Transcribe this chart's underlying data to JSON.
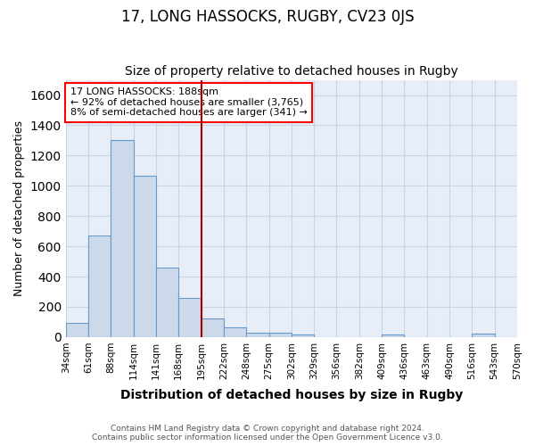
{
  "title": "17, LONG HASSOCKS, RUGBY, CV23 0JS",
  "subtitle": "Size of property relative to detached houses in Rugby",
  "xlabel": "Distribution of detached houses by size in Rugby",
  "ylabel": "Number of detached properties",
  "footer_line1": "Contains HM Land Registry data © Crown copyright and database right 2024.",
  "footer_line2": "Contains public sector information licensed under the Open Government Licence v3.0.",
  "annotation_line1": "17 LONG HASSOCKS: 188sqm",
  "annotation_line2": "← 92% of detached houses are smaller (3,765)",
  "annotation_line3": "8% of semi-detached houses are larger (341) →",
  "tick_labels": [
    "34sqm",
    "61sqm",
    "88sqm",
    "114sqm",
    "141sqm",
    "168sqm",
    "195sqm",
    "222sqm",
    "248sqm",
    "275sqm",
    "302sqm",
    "329sqm",
    "356sqm",
    "382sqm",
    "409sqm",
    "436sqm",
    "463sqm",
    "490sqm",
    "516sqm",
    "543sqm",
    "570sqm"
  ],
  "bar_values": [
    95,
    670,
    1300,
    1065,
    460,
    260,
    125,
    65,
    30,
    30,
    20,
    0,
    0,
    0,
    20,
    0,
    0,
    0,
    25,
    0
  ],
  "bar_color": "#ccd9ea",
  "bar_edge_color": "#6699cc",
  "vline_x": 6,
  "vline_color": "#aa0000",
  "ylim_max": 1700,
  "yticks": [
    0,
    200,
    400,
    600,
    800,
    1000,
    1200,
    1400,
    1600
  ],
  "grid_color": "#c8d4e4",
  "bg_color": "#e8eef8"
}
